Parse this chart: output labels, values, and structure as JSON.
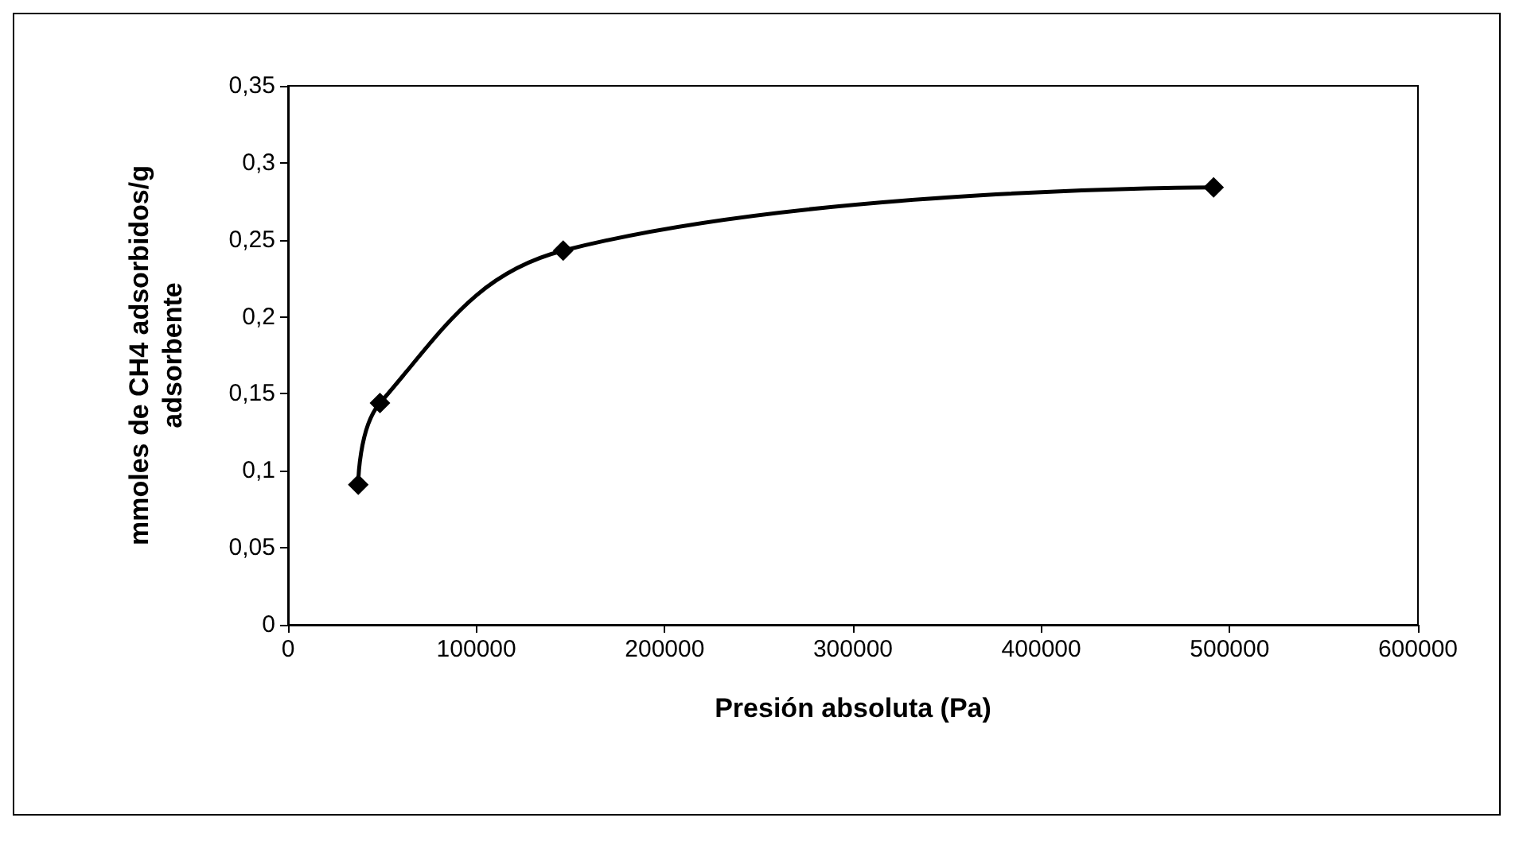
{
  "chart_data": {
    "type": "line",
    "xlabel": "Presión absoluta (Pa)",
    "ylabel": "mmoles de CH4 adsorbidos/g adsorbente",
    "x": [
      37300,
      48800,
      146100,
      491500
    ],
    "series": [
      {
        "color": "#000000",
        "values": [
          0.091,
          0.144,
          0.243,
          0.284
        ]
      }
    ],
    "xlim": [
      0,
      600000
    ],
    "xticks": [
      0,
      100000,
      200000,
      300000,
      400000,
      500000,
      600000
    ],
    "ylim": [
      0,
      0.35
    ],
    "yticks": [
      0,
      {
        "value": 0.05,
        "label": "0,05"
      },
      {
        "value": 0.1,
        "label": "0,1"
      },
      {
        "value": 0.15,
        "label": "0,15"
      },
      {
        "value": 0.2,
        "label": "0,2"
      },
      {
        "value": 0.25,
        "label": "0,25"
      },
      {
        "value": 0.3,
        "label": "0,3"
      },
      {
        "value": 0.35,
        "label": "0,35"
      }
    ],
    "grid": false,
    "marker": "diamond",
    "line_style": "solid"
  }
}
